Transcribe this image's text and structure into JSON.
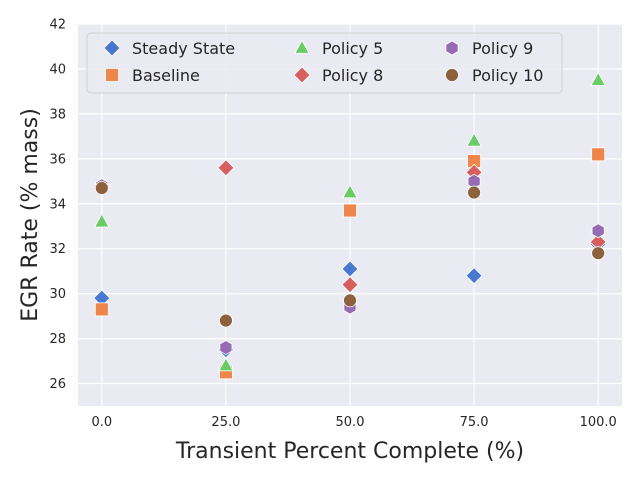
{
  "chart_data": {
    "type": "scatter",
    "title": "",
    "xlabel": "Transient Percent Complete (%)",
    "ylabel": "EGR Rate (% mass)",
    "x_ticks": [
      0,
      25,
      50,
      75,
      100
    ],
    "x_tick_labels": [
      "0.0",
      "25.0",
      "50.0",
      "75.0",
      "100.0"
    ],
    "y_ticks": [
      26,
      28,
      30,
      32,
      34,
      36,
      38,
      40,
      42
    ],
    "y_tick_labels": [
      "26",
      "28",
      "30",
      "32",
      "34",
      "36",
      "38",
      "40",
      "42"
    ],
    "xlim": [
      -4.8,
      104.8
    ],
    "ylim": [
      25,
      42
    ],
    "grid": true,
    "legend_position": "top-left",
    "legend_columns": 3,
    "x": [
      0,
      25,
      50,
      75,
      100
    ],
    "series": [
      {
        "name": "Steady State",
        "marker": "diamond",
        "color": "#4878d0",
        "values": [
          29.8,
          27.5,
          31.1,
          30.8,
          32.2
        ]
      },
      {
        "name": "Baseline",
        "marker": "square",
        "color": "#ee854a",
        "values": [
          29.3,
          26.5,
          33.7,
          35.9,
          36.2
        ]
      },
      {
        "name": "Policy 5",
        "marker": "triangle",
        "color": "#6acc64",
        "values": [
          33.2,
          26.8,
          34.5,
          36.8,
          39.5
        ]
      },
      {
        "name": "Policy 8",
        "marker": "diamond",
        "color": "#d65f5f",
        "values": [
          34.8,
          35.6,
          30.4,
          35.4,
          32.3
        ]
      },
      {
        "name": "Policy 9",
        "marker": "hexagon",
        "color": "#956cb4",
        "values": [
          34.8,
          27.6,
          29.4,
          35.0,
          32.8
        ]
      },
      {
        "name": "Policy 10",
        "marker": "circle",
        "color": "#8c613c",
        "values": [
          34.7,
          28.8,
          29.7,
          34.5,
          31.8
        ]
      }
    ]
  }
}
